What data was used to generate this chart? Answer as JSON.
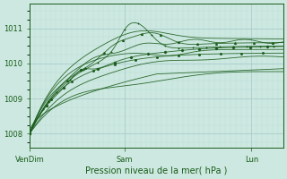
{
  "title": "Pression niveau de la mer( hPa )",
  "xlabel_ticks": [
    "VenDim",
    "Sam",
    "Lun"
  ],
  "xlabel_tick_positions": [
    0.0,
    0.375,
    0.875
  ],
  "ylim": [
    1007.6,
    1011.7
  ],
  "yticks": [
    1008,
    1009,
    1010,
    1011
  ],
  "xlim": [
    0.0,
    1.0
  ],
  "bg_color": "#cce8e0",
  "grid_color_major": "#aacccc",
  "grid_color_minor": "#bbddd8",
  "line_color": "#1a5c1a"
}
